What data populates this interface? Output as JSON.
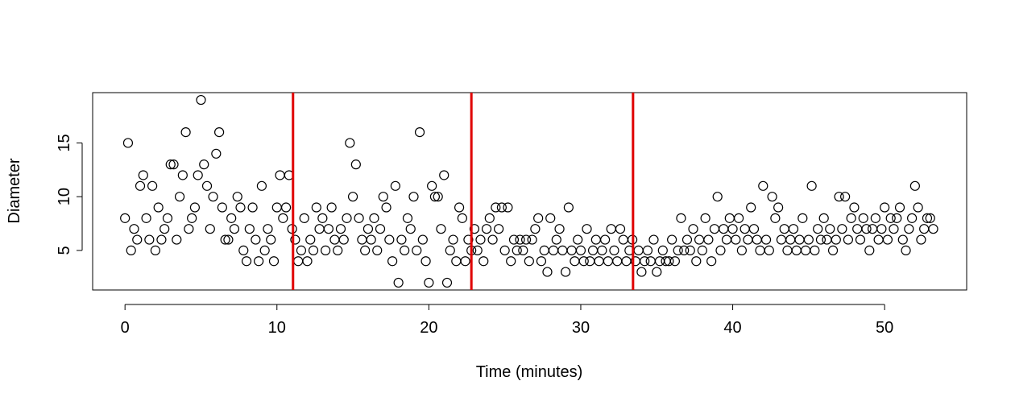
{
  "chart_data": {
    "type": "scatter",
    "xlabel": "Time (minutes)",
    "ylabel": "Diameter",
    "x": [
      0,
      0.2,
      0.4,
      0.6,
      0.8,
      1,
      1.2,
      1.4,
      1.6,
      1.8,
      2,
      2.2,
      2.4,
      2.6,
      2.8,
      3,
      3.2,
      3.4,
      3.6,
      3.8,
      4,
      4.2,
      4.4,
      4.6,
      4.8,
      5,
      5.2,
      5.4,
      5.6,
      5.8,
      6,
      6.2,
      6.4,
      6.6,
      6.8,
      7,
      7.2,
      7.4,
      7.6,
      7.8,
      8,
      8.2,
      8.4,
      8.6,
      8.8,
      9,
      9.2,
      9.4,
      9.6,
      9.8,
      10,
      10.2,
      10.4,
      10.6,
      10.8,
      11,
      11.2,
      11.4,
      11.6,
      11.8,
      12,
      12.2,
      12.4,
      12.6,
      12.8,
      13,
      13.2,
      13.4,
      13.6,
      13.8,
      14,
      14.2,
      14.4,
      14.6,
      14.8,
      15,
      15.2,
      15.4,
      15.6,
      15.8,
      16,
      16.2,
      16.4,
      16.6,
      16.8,
      17,
      17.2,
      17.4,
      17.6,
      17.8,
      18,
      18.2,
      18.4,
      18.6,
      18.8,
      19,
      19.2,
      19.4,
      19.6,
      19.8,
      20,
      20.2,
      20.4,
      20.6,
      20.8,
      21,
      21.2,
      21.4,
      21.6,
      21.8,
      22,
      22.2,
      22.4,
      22.6,
      22.8,
      23,
      23.2,
      23.4,
      23.6,
      23.8,
      24,
      24.2,
      24.4,
      24.6,
      24.8,
      25,
      25.2,
      25.4,
      25.6,
      25.8,
      26,
      26.2,
      26.4,
      26.6,
      26.8,
      27,
      27.2,
      27.4,
      27.6,
      27.8,
      28,
      28.2,
      28.4,
      28.6,
      28.8,
      29,
      29.2,
      29.4,
      29.6,
      29.8,
      30,
      30.2,
      30.4,
      30.6,
      30.8,
      31,
      31.2,
      31.4,
      31.6,
      31.8,
      32,
      32.2,
      32.4,
      32.6,
      32.8,
      33,
      33.2,
      33.4,
      33.6,
      33.8,
      34,
      34.2,
      34.4,
      34.6,
      34.8,
      35,
      35.2,
      35.4,
      35.6,
      35.8,
      36,
      36.2,
      36.4,
      36.6,
      36.8,
      37,
      37.2,
      37.4,
      37.6,
      37.8,
      38,
      38.2,
      38.4,
      38.6,
      38.8,
      39,
      39.2,
      39.4,
      39.6,
      39.8,
      40,
      40.2,
      40.4,
      40.6,
      40.8,
      41,
      41.2,
      41.4,
      41.6,
      41.8,
      42,
      42.2,
      42.4,
      42.6,
      42.8,
      43,
      43.2,
      43.4,
      43.6,
      43.8,
      44,
      44.2,
      44.4,
      44.6,
      44.8,
      45,
      45.2,
      45.4,
      45.6,
      45.8,
      46,
      46.2,
      46.4,
      46.6,
      46.8,
      47,
      47.2,
      47.4,
      47.6,
      47.8,
      48,
      48.2,
      48.4,
      48.6,
      48.8,
      49,
      49.2,
      49.4,
      49.6,
      49.8,
      50,
      50.2,
      50.4,
      50.6,
      50.8,
      51,
      51.2,
      51.4,
      51.6,
      51.8,
      52,
      52.2,
      52.4,
      52.6,
      52.8,
      53,
      53.2
    ],
    "values": [
      8,
      15,
      5,
      7,
      6,
      11,
      12,
      8,
      6,
      11,
      5,
      9,
      6,
      7,
      8,
      13,
      13,
      6,
      10,
      12,
      16,
      7,
      8,
      9,
      12,
      19,
      13,
      11,
      7,
      10,
      14,
      16,
      9,
      6,
      6,
      8,
      7,
      10,
      9,
      5,
      4,
      7,
      9,
      6,
      4,
      11,
      5,
      7,
      6,
      4,
      9,
      12,
      8,
      9,
      12,
      7,
      6,
      4,
      5,
      8,
      4,
      6,
      5,
      9,
      7,
      8,
      5,
      7,
      9,
      6,
      5,
      7,
      6,
      8,
      15,
      10,
      13,
      8,
      6,
      5,
      7,
      6,
      8,
      5,
      7,
      10,
      9,
      6,
      4,
      11,
      2,
      6,
      5,
      8,
      7,
      10,
      5,
      16,
      6,
      4,
      2,
      11,
      10,
      10,
      7,
      12,
      2,
      5,
      6,
      4,
      9,
      8,
      4,
      6,
      5,
      7,
      5,
      6,
      4,
      7,
      8,
      6,
      9,
      7,
      9,
      5,
      9,
      4,
      6,
      5,
      6,
      5,
      6,
      4,
      6,
      7,
      8,
      4,
      5,
      3,
      8,
      5,
      6,
      7,
      5,
      3,
      9,
      5,
      4,
      6,
      5,
      4,
      7,
      4,
      5,
      6,
      4,
      5,
      6,
      4,
      7,
      5,
      4,
      7,
      6,
      4,
      5,
      6,
      4,
      5,
      3,
      4,
      5,
      4,
      6,
      3,
      4,
      5,
      4,
      4,
      6,
      4,
      5,
      8,
      5,
      6,
      5,
      7,
      4,
      6,
      5,
      8,
      6,
      4,
      7,
      10,
      5,
      7,
      6,
      8,
      7,
      6,
      8,
      5,
      7,
      6,
      9,
      7,
      6,
      5,
      11,
      6,
      5,
      10,
      8,
      9,
      6,
      7,
      5,
      6,
      7,
      5,
      6,
      8,
      5,
      6,
      11,
      5,
      7,
      6,
      8,
      6,
      7,
      5,
      6,
      10,
      7,
      10,
      6,
      8,
      9,
      7,
      6,
      8,
      7,
      5,
      7,
      8,
      6,
      7,
      9,
      6,
      8,
      7,
      8,
      9,
      6,
      5,
      7,
      8,
      11,
      9,
      6,
      7,
      8,
      8,
      7
    ],
    "point_color": "#000000",
    "vlines": [
      11.06,
      22.8,
      33.44
    ],
    "vline_color": "#e00000",
    "xlim": [
      -2.13,
      55.4
    ],
    "ylim": [
      1.32,
      19.68
    ],
    "xticks": [
      0,
      10,
      20,
      30,
      40,
      50
    ],
    "yticks": [
      5,
      10,
      15
    ]
  }
}
